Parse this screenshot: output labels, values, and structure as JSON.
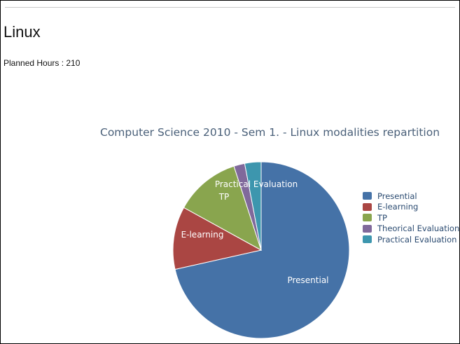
{
  "page": {
    "title": "Linux",
    "planned_hours": "Planned Hours : 210"
  },
  "chart_data": {
    "type": "pie",
    "title": "Computer Science 2010 - Sem 1. - Linux modalities repartition",
    "slices": [
      {
        "name": "Presential",
        "value": 71.5,
        "color": "#4572a7"
      },
      {
        "name": "E-learning",
        "value": 11.5,
        "color": "#aa4643"
      },
      {
        "name": "TP",
        "value": 12.0,
        "color": "#89a54e"
      },
      {
        "name": "Theorical Evaluation",
        "value": 2.0,
        "color": "#80699b"
      },
      {
        "name": "Practical Evaluation",
        "value": 3.0,
        "color": "#3d96ae"
      }
    ],
    "legend_position": "right"
  }
}
